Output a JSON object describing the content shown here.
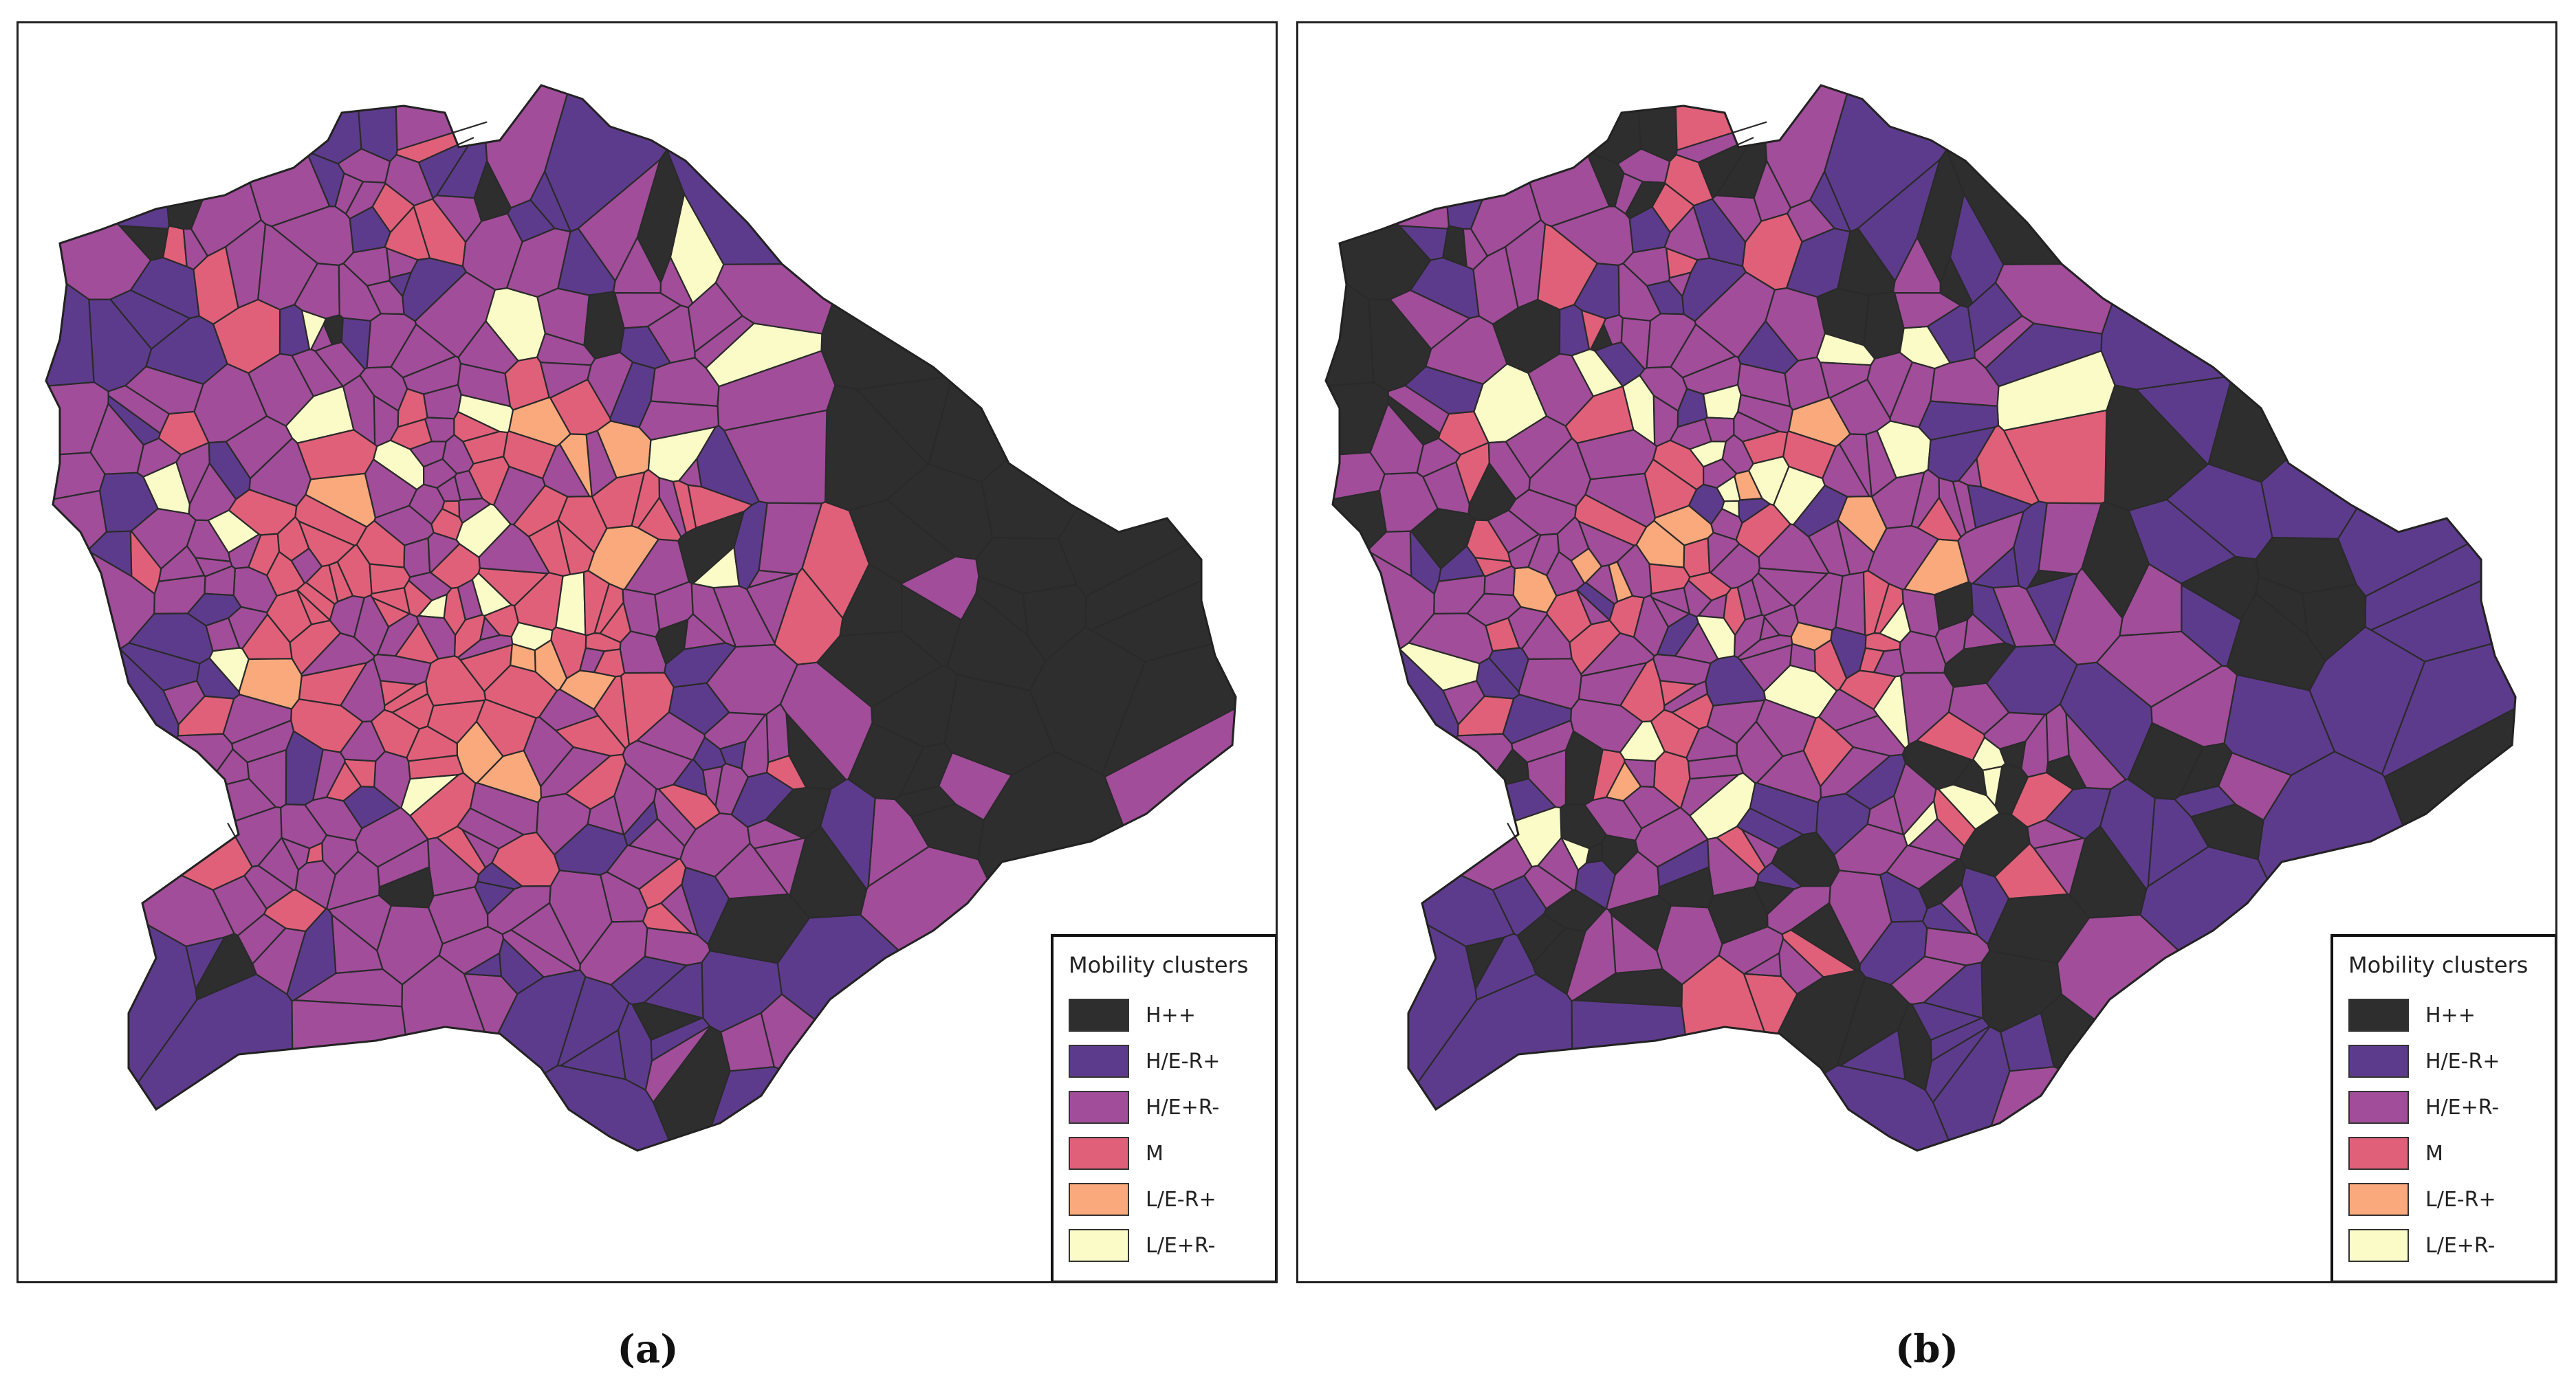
{
  "panels": [
    {
      "id": "a",
      "caption": "(a)",
      "legend": {
        "title": "Mobility clusters",
        "items": [
          {
            "label": "H++",
            "color": "#2e2e2e"
          },
          {
            "label": "H/E-R+",
            "color": "#5d3b8c"
          },
          {
            "label": "H/E+R-",
            "color": "#a14d9a"
          },
          {
            "label": "M",
            "color": "#e0607a"
          },
          {
            "label": "L/E-R+",
            "color": "#f9a97c"
          },
          {
            "label": "L/E+R-",
            "color": "#fbfbc8"
          }
        ]
      }
    },
    {
      "id": "b",
      "caption": "(b)",
      "legend": {
        "title": "Mobility clusters",
        "items": [
          {
            "label": "H++",
            "color": "#2e2e2e"
          },
          {
            "label": "H/E-R+",
            "color": "#5d3b8c"
          },
          {
            "label": "H/E+R-",
            "color": "#a14d9a"
          },
          {
            "label": "M",
            "color": "#e0607a"
          },
          {
            "label": "L/E-R+",
            "color": "#f9a97c"
          },
          {
            "label": "L/E+R-",
            "color": "#fbfbc8"
          }
        ]
      }
    }
  ]
}
